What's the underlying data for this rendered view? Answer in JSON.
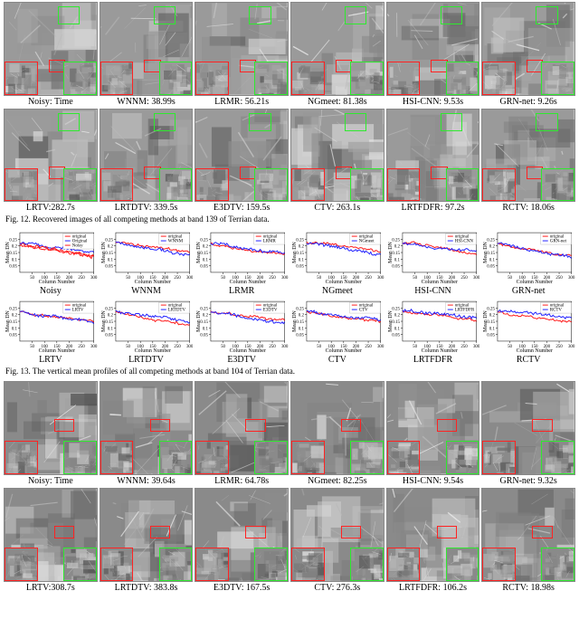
{
  "fig12": {
    "caption": "Fig. 12.   Recovered images of all competing methods at band 139 of Terrian data.",
    "cells": [
      {
        "label": "Noisy: Time",
        "mark_green": [
          58,
          4,
          24,
          20
        ],
        "mark_red": [
          48,
          62,
          18,
          14
        ],
        "noise_seed": 1
      },
      {
        "label": "WNNM: 38.99s",
        "mark_green": [
          58,
          4,
          24,
          20
        ],
        "mark_red": [
          48,
          62,
          18,
          14
        ],
        "noise_seed": 2
      },
      {
        "label": "LRMR: 56.21s",
        "mark_green": [
          58,
          4,
          24,
          20
        ],
        "mark_red": [
          48,
          62,
          18,
          14
        ],
        "noise_seed": 3
      },
      {
        "label": "NGmeet: 81.38s",
        "mark_green": [
          58,
          4,
          24,
          20
        ],
        "mark_red": [
          48,
          62,
          18,
          14
        ],
        "noise_seed": 4
      },
      {
        "label": "HSI-CNN: 9.53s",
        "mark_green": [
          58,
          4,
          24,
          20
        ],
        "mark_red": [
          48,
          62,
          18,
          14
        ],
        "noise_seed": 5
      },
      {
        "label": "GRN-net: 9.26s",
        "mark_green": [
          58,
          4,
          24,
          20
        ],
        "mark_red": [
          48,
          62,
          18,
          14
        ],
        "noise_seed": 6
      },
      {
        "label": "LRTV:282.7s",
        "mark_green": [
          58,
          4,
          24,
          20
        ],
        "mark_red": [
          48,
          62,
          18,
          14
        ],
        "noise_seed": 7
      },
      {
        "label": "LRTDTV: 339.5s",
        "mark_green": [
          58,
          4,
          24,
          20
        ],
        "mark_red": [
          48,
          62,
          18,
          14
        ],
        "noise_seed": 8
      },
      {
        "label": "E3DTV: 159.5s",
        "mark_green": [
          58,
          4,
          24,
          20
        ],
        "mark_red": [
          48,
          62,
          18,
          14
        ],
        "noise_seed": 9
      },
      {
        "label": "CTV: 263.1s",
        "mark_green": [
          58,
          4,
          24,
          20
        ],
        "mark_red": [
          48,
          62,
          18,
          14
        ],
        "noise_seed": 10
      },
      {
        "label": "LRTFDFR: 97.2s",
        "mark_green": [
          58,
          4,
          24,
          20
        ],
        "mark_red": [
          48,
          62,
          18,
          14
        ],
        "noise_seed": 11
      },
      {
        "label": "RCTV: 18.06s",
        "mark_green": [
          58,
          4,
          24,
          20
        ],
        "mark_red": [
          48,
          62,
          18,
          14
        ],
        "noise_seed": 12
      }
    ],
    "image_style": {
      "hue": "gray-terrain",
      "contrast": "medium"
    }
  },
  "fig13": {
    "caption": "Fig. 13.   The vertical mean profiles of all competing methods at band 104 of Terrian data.",
    "chart_style": {
      "type": "line",
      "xlim": [
        0,
        300
      ],
      "ylim": [
        0,
        0.3
      ],
      "xlabel": "Column Number",
      "ylabel": "Mean DN",
      "xtick_vals": [
        50,
        100,
        150,
        200,
        250,
        300
      ],
      "ytick_vals": [
        0.05,
        0.1,
        0.15,
        0.2,
        0.25
      ],
      "label_fontsize": 6,
      "tick_fontsize": 5,
      "legend_fontsize": 5,
      "grid_color": "#e8e8e8",
      "bg": "#ffffff",
      "line_width": 1,
      "colors": {
        "original": "#ff1a1a",
        "recovered": "#2222ff",
        "extra": "#ff1a1a"
      }
    },
    "rows": [
      [
        {
          "label": "Noisy",
          "legend": [
            "original",
            "Original",
            "Noisy"
          ],
          "series_colors": [
            "#ff1a1a",
            "#2222ff",
            "#ff1a1a"
          ],
          "seed": 101
        },
        {
          "label": "WNNM",
          "legend": [
            "original",
            "WNNM"
          ],
          "series_colors": [
            "#ff1a1a",
            "#2222ff"
          ],
          "seed": 102
        },
        {
          "label": "LRMR",
          "legend": [
            "original",
            "LRMR"
          ],
          "series_colors": [
            "#ff1a1a",
            "#2222ff"
          ],
          "seed": 103
        },
        {
          "label": "NGmeet",
          "legend": [
            "original",
            "NGmeet"
          ],
          "series_colors": [
            "#ff1a1a",
            "#2222ff"
          ],
          "seed": 104
        },
        {
          "label": "HSI-CNN",
          "legend": [
            "original",
            "HSI-CNN"
          ],
          "series_colors": [
            "#ff1a1a",
            "#2222ff"
          ],
          "seed": 105
        },
        {
          "label": "GRN-net",
          "legend": [
            "original",
            "GRN-net"
          ],
          "series_colors": [
            "#ff1a1a",
            "#2222ff"
          ],
          "seed": 106
        }
      ],
      [
        {
          "label": "LRTV",
          "legend": [
            "original",
            "LRTV"
          ],
          "series_colors": [
            "#ff1a1a",
            "#2222ff"
          ],
          "seed": 107
        },
        {
          "label": "LRTDTV",
          "legend": [
            "original",
            "LRTDTV"
          ],
          "series_colors": [
            "#ff1a1a",
            "#2222ff"
          ],
          "seed": 108
        },
        {
          "label": "E3DTV",
          "legend": [
            "original",
            "E3DTV"
          ],
          "series_colors": [
            "#ff1a1a",
            "#2222ff"
          ],
          "seed": 109
        },
        {
          "label": "CTV",
          "legend": [
            "original",
            "CTV"
          ],
          "series_colors": [
            "#ff1a1a",
            "#2222ff"
          ],
          "seed": 110
        },
        {
          "label": "LRTFDFR",
          "legend": [
            "original",
            "LRTFDFR"
          ],
          "series_colors": [
            "#ff1a1a",
            "#2222ff"
          ],
          "seed": 111
        },
        {
          "label": "RCTV",
          "legend": [
            "original",
            "RCTV"
          ],
          "series_colors": [
            "#ff1a1a",
            "#2222ff"
          ],
          "seed": 112
        }
      ]
    ]
  },
  "fig14": {
    "caption": "",
    "cells": [
      {
        "label": "Noisy: Time",
        "mark_green": [
          14,
          66,
          22,
          14
        ],
        "mark_red": [
          54,
          40,
          22,
          14
        ],
        "noise_seed": 201
      },
      {
        "label": "WNNM: 39.64s",
        "mark_green": [
          14,
          66,
          22,
          14
        ],
        "mark_red": [
          54,
          40,
          22,
          14
        ],
        "noise_seed": 202
      },
      {
        "label": "LRMR: 64.78s",
        "mark_green": [
          14,
          66,
          22,
          14
        ],
        "mark_red": [
          54,
          40,
          22,
          14
        ],
        "noise_seed": 203
      },
      {
        "label": "NGmeet: 82.25s",
        "mark_green": [
          14,
          66,
          22,
          14
        ],
        "mark_red": [
          54,
          40,
          22,
          14
        ],
        "noise_seed": 204
      },
      {
        "label": "HSI-CNN: 9.54s",
        "mark_green": [
          14,
          66,
          22,
          14
        ],
        "mark_red": [
          54,
          40,
          22,
          14
        ],
        "noise_seed": 205
      },
      {
        "label": "GRN-net: 9.32s",
        "mark_green": [
          14,
          66,
          22,
          14
        ],
        "mark_red": [
          54,
          40,
          22,
          14
        ],
        "noise_seed": 206
      },
      {
        "label": "LRTV:308.7s",
        "mark_green": [
          14,
          66,
          22,
          14
        ],
        "mark_red": [
          54,
          40,
          22,
          14
        ],
        "noise_seed": 207
      },
      {
        "label": "LRTDTV: 383.8s",
        "mark_green": [
          14,
          66,
          22,
          14
        ],
        "mark_red": [
          54,
          40,
          22,
          14
        ],
        "noise_seed": 208
      },
      {
        "label": "E3DTV: 167.5s",
        "mark_green": [
          14,
          66,
          22,
          14
        ],
        "mark_red": [
          54,
          40,
          22,
          14
        ],
        "noise_seed": 209
      },
      {
        "label": "CTV: 276.3s",
        "mark_green": [
          14,
          66,
          22,
          14
        ],
        "mark_red": [
          54,
          40,
          22,
          14
        ],
        "noise_seed": 210
      },
      {
        "label": "LRTFDFR: 106.2s",
        "mark_green": [
          14,
          66,
          22,
          14
        ],
        "mark_red": [
          54,
          40,
          22,
          14
        ],
        "noise_seed": 211
      },
      {
        "label": "RCTV: 18.98s",
        "mark_green": [
          14,
          66,
          22,
          14
        ],
        "mark_red": [
          54,
          40,
          22,
          14
        ],
        "noise_seed": 212
      }
    ],
    "image_style": {
      "hue": "gray-urban",
      "contrast": "low"
    }
  }
}
